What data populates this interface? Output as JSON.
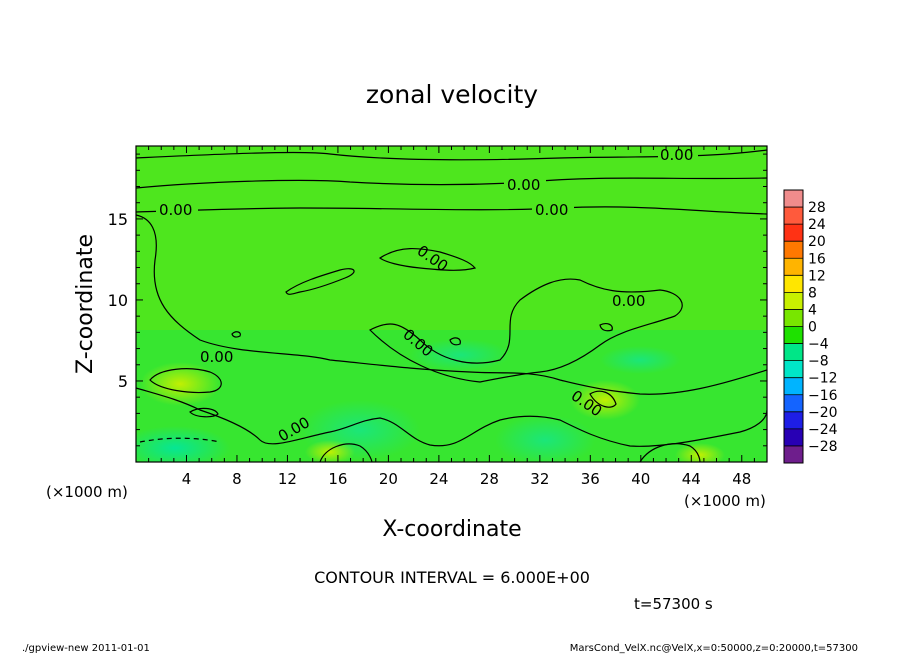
{
  "chart_data": {
    "type": "heatmap",
    "title": "zonal velocity",
    "xlabel": "X-coordinate",
    "ylabel": "Z-coordinate",
    "x_unit_left": "(×1000 m)",
    "x_unit_right": "(×1000 m)",
    "xlim": [
      0,
      50
    ],
    "ylim": [
      0,
      19.5
    ],
    "x_ticks": [
      "4",
      "8",
      "12",
      "16",
      "20",
      "24",
      "28",
      "32",
      "36",
      "40",
      "44",
      "48"
    ],
    "y_ticks": [
      "5",
      "10",
      "15"
    ],
    "contour_interval_text": "CONTOUR INTERVAL = 6.000E+00",
    "time_text": "t=57300 s",
    "contour_labels": [
      "0.00",
      "0.00",
      "0.00",
      "0.00",
      "0.00",
      "0.00",
      "0.00",
      "0.00",
      "0.00",
      "0.00"
    ],
    "colorbar": {
      "labels": [
        "28",
        "24",
        "20",
        "16",
        "12",
        "8",
        "4",
        "0",
        "−4",
        "−8",
        "−12",
        "−16",
        "−20",
        "−24",
        "−28"
      ],
      "colors": [
        "#f08c8c",
        "#ff5a3c",
        "#ff3214",
        "#ff7800",
        "#ffb400",
        "#ffe600",
        "#c8f000",
        "#78e600",
        "#1ee100",
        "#00e687",
        "#00e6c8",
        "#00b4ff",
        "#1464ff",
        "#1e1ee6",
        "#2800b4",
        "#6e1e8c"
      ]
    }
  },
  "footer": {
    "left": "./gpview-new   2011-01-01",
    "right": "MarsCond_VelX.nc@VelX,x=0:50000,z=0:20000,t=57300"
  }
}
